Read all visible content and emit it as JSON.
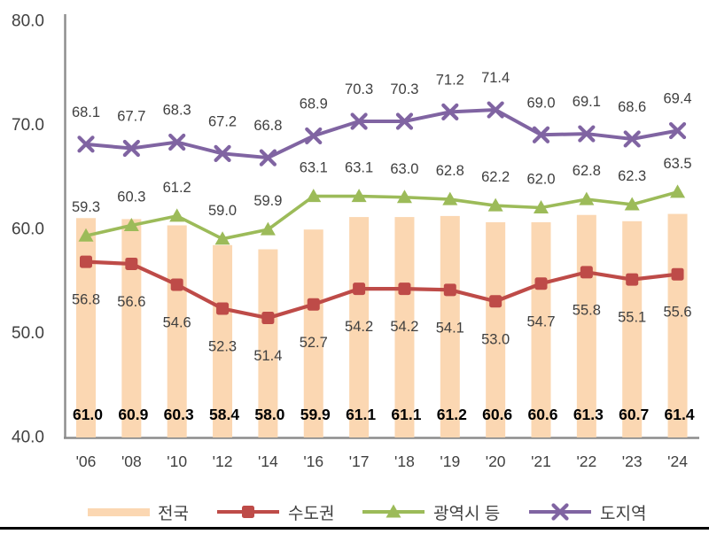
{
  "chart_data": {
    "type": "bar+line combo",
    "title": "",
    "categories": [
      "'06",
      "'08",
      "'10",
      "'12",
      "'14",
      "'16",
      "'17",
      "'18",
      "'19",
      "'20",
      "'21",
      "'22",
      "'23",
      "'24"
    ],
    "bar_series": {
      "name": "전국",
      "color": "#FBD7B2",
      "values": [
        61.0,
        60.9,
        60.3,
        58.4,
        58.0,
        59.9,
        61.1,
        61.1,
        61.2,
        60.6,
        60.6,
        61.3,
        60.7,
        61.4
      ]
    },
    "line_series": [
      {
        "name": "수도권",
        "color": "#BE4B48",
        "marker": "square",
        "values": [
          56.8,
          56.6,
          54.6,
          52.3,
          51.4,
          52.7,
          54.2,
          54.2,
          54.1,
          53.0,
          54.7,
          55.8,
          55.1,
          55.6
        ]
      },
      {
        "name": "광역시 등",
        "color": "#9CBB59",
        "marker": "triangle",
        "values": [
          59.3,
          60.3,
          61.2,
          59.0,
          59.9,
          63.1,
          63.1,
          63.0,
          62.8,
          62.2,
          62.0,
          62.8,
          62.3,
          63.5
        ]
      },
      {
        "name": "도지역",
        "color": "#8064A2",
        "marker": "x",
        "values": [
          68.1,
          67.7,
          68.3,
          67.2,
          66.8,
          68.9,
          70.3,
          70.3,
          71.2,
          71.4,
          69.0,
          69.1,
          68.6,
          69.4
        ]
      }
    ],
    "y_axis": {
      "ticks": [
        "80.0",
        "70.0",
        "60.0",
        "50.0",
        "40.0"
      ],
      "min": 40,
      "max": 80
    },
    "grid": false,
    "legend_position": "bottom",
    "value_label_decimals": 1,
    "colors": {
      "axis_line": "#8C8C8C",
      "tick_text": "#404040",
      "point_label_text": "#3F3F3F",
      "bar_label_text": "#000000",
      "bottom_rule": "#000000",
      "background": "#FFFFFF"
    }
  }
}
